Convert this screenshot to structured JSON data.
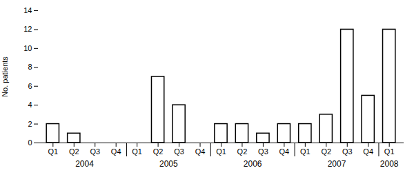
{
  "chart_data": {
    "type": "bar",
    "categories": [
      "Q1",
      "Q2",
      "Q3",
      "Q4",
      "Q1",
      "Q2",
      "Q3",
      "Q4",
      "Q1",
      "Q2",
      "Q3",
      "Q4",
      "Q1",
      "Q2",
      "Q3",
      "Q4",
      "Q1"
    ],
    "values": [
      2,
      1,
      0,
      0,
      0,
      7,
      4,
      0,
      2,
      2,
      1,
      2,
      2,
      3,
      12,
      5,
      12
    ],
    "color": "#ffffff",
    "ylabel": "No. patients",
    "ylim": [
      0,
      14
    ],
    "yticks": [
      0,
      2,
      4,
      6,
      8,
      10,
      12,
      14
    ],
    "annotations": [
      "2004",
      "2005",
      "2006",
      "2007",
      "2008"
    ],
    "grid": false
  }
}
